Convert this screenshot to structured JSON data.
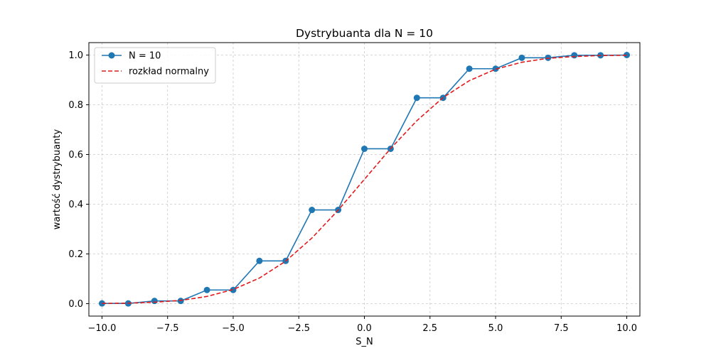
{
  "chart_data": {
    "type": "line",
    "title": "Dystrybuanta dla N = 10",
    "xlabel": "S_N",
    "ylabel": "wartość dystrybuanty",
    "xlim": [
      -10.5,
      10.5
    ],
    "ylim": [
      -0.05,
      1.05
    ],
    "grid": true,
    "grid_style": "dashed",
    "legend_position": "top-left",
    "x_ticks": [
      -10,
      -7.5,
      -5,
      -2.5,
      0,
      2.5,
      5,
      7.5,
      10
    ],
    "x_tick_labels": [
      "−10.0",
      "−7.5",
      "−5.0",
      "−2.5",
      "0.0",
      "2.5",
      "5.0",
      "7.5",
      "10.0"
    ],
    "y_ticks": [
      0,
      0.2,
      0.4,
      0.6,
      0.8,
      1.0
    ],
    "y_tick_labels": [
      "0.0",
      "0.2",
      "0.4",
      "0.6",
      "0.8",
      "1.0"
    ],
    "series": [
      {
        "name": "N = 10",
        "style": "solid-line-with-circle-markers",
        "color": "#1f77b4",
        "x": [
          -10,
          -9,
          -8,
          -7,
          -6,
          -5,
          -4,
          -3,
          -2,
          -1,
          0,
          1,
          2,
          3,
          4,
          5,
          6,
          7,
          8,
          9,
          10
        ],
        "values": [
          0.001,
          0.001,
          0.011,
          0.011,
          0.055,
          0.055,
          0.172,
          0.172,
          0.377,
          0.377,
          0.623,
          0.623,
          0.828,
          0.828,
          0.945,
          0.945,
          0.989,
          0.989,
          0.999,
          0.999,
          1.0
        ]
      },
      {
        "name": "rozkład normalny",
        "style": "dashed-line",
        "color": "#e31a1c",
        "x": [
          -10,
          -9,
          -8,
          -7,
          -6,
          -5,
          -4,
          -3,
          -2,
          -1,
          0,
          1,
          2,
          3,
          4,
          5,
          6,
          7,
          8,
          9,
          10
        ],
        "values": [
          0.001,
          0.002,
          0.006,
          0.013,
          0.029,
          0.057,
          0.103,
          0.171,
          0.264,
          0.376,
          0.5,
          0.624,
          0.736,
          0.829,
          0.897,
          0.943,
          0.971,
          0.987,
          0.994,
          0.998,
          0.999
        ]
      }
    ]
  }
}
